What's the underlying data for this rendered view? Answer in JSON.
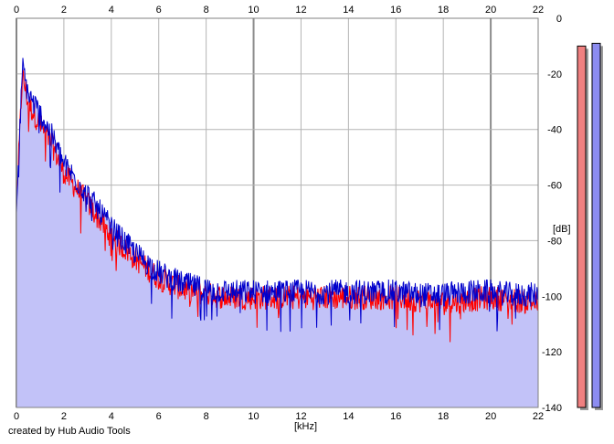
{
  "chart_data": {
    "type": "area",
    "x_unit": "[kHz]",
    "y_unit": "[dB]",
    "xlim": [
      0,
      22
    ],
    "ylim": [
      -140,
      0
    ],
    "x_ticks": [
      "0",
      "2",
      "4",
      "6",
      "8",
      "10",
      "12",
      "14",
      "16",
      "18",
      "20",
      "22"
    ],
    "y_ticks": [
      "0",
      "-20",
      "-40",
      "-60",
      "-80",
      "-100",
      "-120",
      "-140"
    ],
    "grid": true,
    "series": [
      {
        "color": "#ff0000",
        "x": [
          0,
          0.25,
          0.5,
          1,
          1.5,
          2,
          3,
          4,
          5,
          6,
          7,
          8,
          9,
          10,
          12,
          14,
          16,
          17,
          18,
          19,
          20,
          21,
          22
        ],
        "y": [
          -68,
          -20,
          -30,
          -38,
          -45,
          -55,
          -66,
          -78,
          -86,
          -93,
          -97,
          -99,
          -100,
          -100,
          -100,
          -100,
          -100,
          -101,
          -102,
          -101,
          -100,
          -101,
          -102
        ]
      },
      {
        "color": "#0000cc",
        "x": [
          0,
          0.25,
          0.5,
          1,
          1.5,
          2,
          3,
          4,
          5,
          6,
          7,
          8,
          9,
          10,
          12,
          14,
          16,
          17,
          18,
          19,
          20,
          21,
          22
        ],
        "y": [
          -70,
          -17,
          -27,
          -34,
          -42,
          -52,
          -63,
          -75,
          -84,
          -91,
          -95,
          -97,
          -98,
          -98,
          -98,
          -98,
          -98,
          -99,
          -99,
          -98,
          -98,
          -99,
          -99
        ]
      }
    ],
    "level_meters": [
      {
        "color": "#f08080",
        "level_db": -10
      },
      {
        "color": "#8c8cf0",
        "level_db": -9
      }
    ]
  },
  "credit": "created by Hub Audio Tools",
  "colors": {
    "fill": "#c2c2f8",
    "grid": "#b4b4b4",
    "grid_major": "#8c8c8c"
  }
}
